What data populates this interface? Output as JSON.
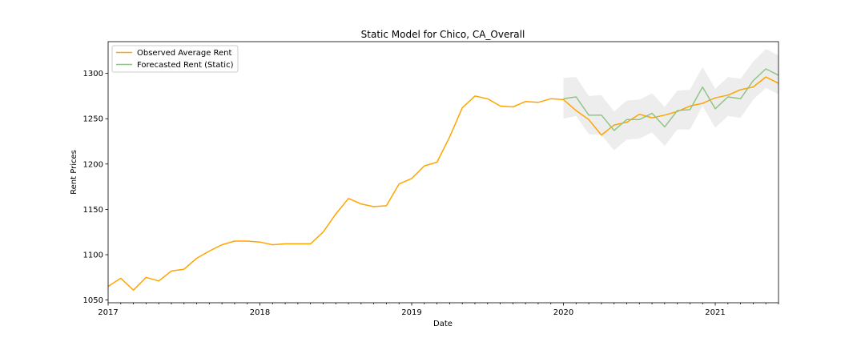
{
  "chart_data": {
    "type": "line",
    "title": "Static Model for Chico, CA_Overall",
    "xlabel": "Date",
    "ylabel": "Rent Prices",
    "xlim": [
      "2017-01",
      "2021-06"
    ],
    "ylim": [
      1047,
      1335
    ],
    "x_tick_labels": [
      "2017",
      "2018",
      "2019",
      "2020",
      "2021"
    ],
    "y_ticks": [
      1050,
      1100,
      1150,
      1200,
      1250,
      1300
    ],
    "grid": false,
    "legend_position": "upper-left",
    "series": [
      {
        "name": "Observed Average Rent",
        "color": "#ffa500",
        "x": [
          "2017-01",
          "2017-02",
          "2017-03",
          "2017-04",
          "2017-05",
          "2017-06",
          "2017-07",
          "2017-08",
          "2017-09",
          "2017-10",
          "2017-11",
          "2017-12",
          "2018-01",
          "2018-02",
          "2018-03",
          "2018-04",
          "2018-05",
          "2018-06",
          "2018-07",
          "2018-08",
          "2018-09",
          "2018-10",
          "2018-11",
          "2018-12",
          "2019-01",
          "2019-02",
          "2019-03",
          "2019-04",
          "2019-05",
          "2019-06",
          "2019-07",
          "2019-08",
          "2019-09",
          "2019-10",
          "2019-11",
          "2019-12",
          "2020-01",
          "2020-02",
          "2020-03",
          "2020-04",
          "2020-05",
          "2020-06",
          "2020-07",
          "2020-08",
          "2020-09",
          "2020-10",
          "2020-11",
          "2020-12",
          "2021-01",
          "2021-02",
          "2021-03",
          "2021-04",
          "2021-05",
          "2021-06"
        ],
        "values": [
          1065,
          1074,
          1061,
          1075,
          1071,
          1082,
          1084,
          1096,
          1104,
          1111,
          1115,
          1115,
          1114,
          1111,
          1112,
          1112,
          1112,
          1125,
          1145,
          1162,
          1156,
          1153,
          1154,
          1178,
          1184,
          1198,
          1202,
          1230,
          1262,
          1275,
          1272,
          1264,
          1263,
          1269,
          1268,
          1272,
          1271,
          1259,
          1249,
          1232,
          1243,
          1246,
          1255,
          1251,
          1254,
          1258,
          1264,
          1267,
          1273,
          1276,
          1282,
          1285,
          1296,
          1289
        ]
      },
      {
        "name": "Forecasted Rent (Static)",
        "color": "#90c587",
        "x": [
          "2020-01",
          "2020-02",
          "2020-03",
          "2020-04",
          "2020-05",
          "2020-06",
          "2020-07",
          "2020-08",
          "2020-09",
          "2020-10",
          "2020-11",
          "2020-12",
          "2021-01",
          "2021-02",
          "2021-03",
          "2021-04",
          "2021-05",
          "2021-06"
        ],
        "values": [
          1272,
          1274,
          1254,
          1254,
          1237,
          1249,
          1249,
          1256,
          1241,
          1259,
          1260,
          1285,
          1261,
          1274,
          1272,
          1292,
          1305,
          1298
        ],
        "band_lower": [
          1250,
          1253,
          1233,
          1232,
          1215,
          1227,
          1228,
          1235,
          1220,
          1238,
          1238,
          1264,
          1240,
          1253,
          1251,
          1271,
          1284,
          1277
        ],
        "band_upper": [
          1295,
          1296,
          1275,
          1276,
          1258,
          1270,
          1271,
          1278,
          1263,
          1281,
          1282,
          1307,
          1283,
          1296,
          1294,
          1313,
          1327,
          1320
        ]
      }
    ]
  }
}
